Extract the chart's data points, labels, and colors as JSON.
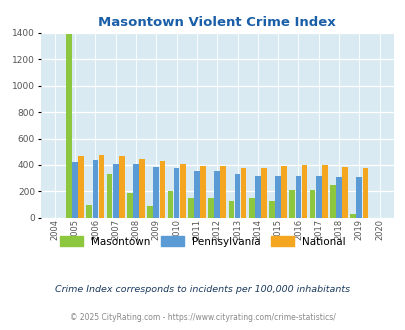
{
  "title": "Masontown Violent Crime Index",
  "years": [
    2004,
    2005,
    2006,
    2007,
    2008,
    2009,
    2010,
    2011,
    2012,
    2013,
    2014,
    2015,
    2016,
    2017,
    2018,
    2019,
    2020
  ],
  "masontown": [
    0,
    1390,
    95,
    330,
    185,
    90,
    205,
    150,
    150,
    125,
    150,
    125,
    210,
    210,
    250,
    30,
    0
  ],
  "pennsylvania": [
    0,
    420,
    440,
    410,
    405,
    385,
    375,
    355,
    355,
    330,
    315,
    315,
    315,
    315,
    310,
    310,
    0
  ],
  "national": [
    0,
    465,
    475,
    465,
    445,
    430,
    405,
    390,
    390,
    375,
    380,
    390,
    400,
    400,
    385,
    380,
    0
  ],
  "masontown_color": "#8dc63f",
  "pennsylvania_color": "#5b9bd5",
  "national_color": "#f4a620",
  "bg_color": "#daeaf3",
  "title_color": "#1a5fa8",
  "ylabel_max": 1400,
  "yticks": [
    0,
    200,
    400,
    600,
    800,
    1000,
    1200,
    1400
  ],
  "footnote1": "Crime Index corresponds to incidents per 100,000 inhabitants",
  "footnote2": "© 2025 CityRating.com - https://www.cityrating.com/crime-statistics/",
  "legend_labels": [
    "Masontown",
    "Pennsylvania",
    "National"
  ]
}
